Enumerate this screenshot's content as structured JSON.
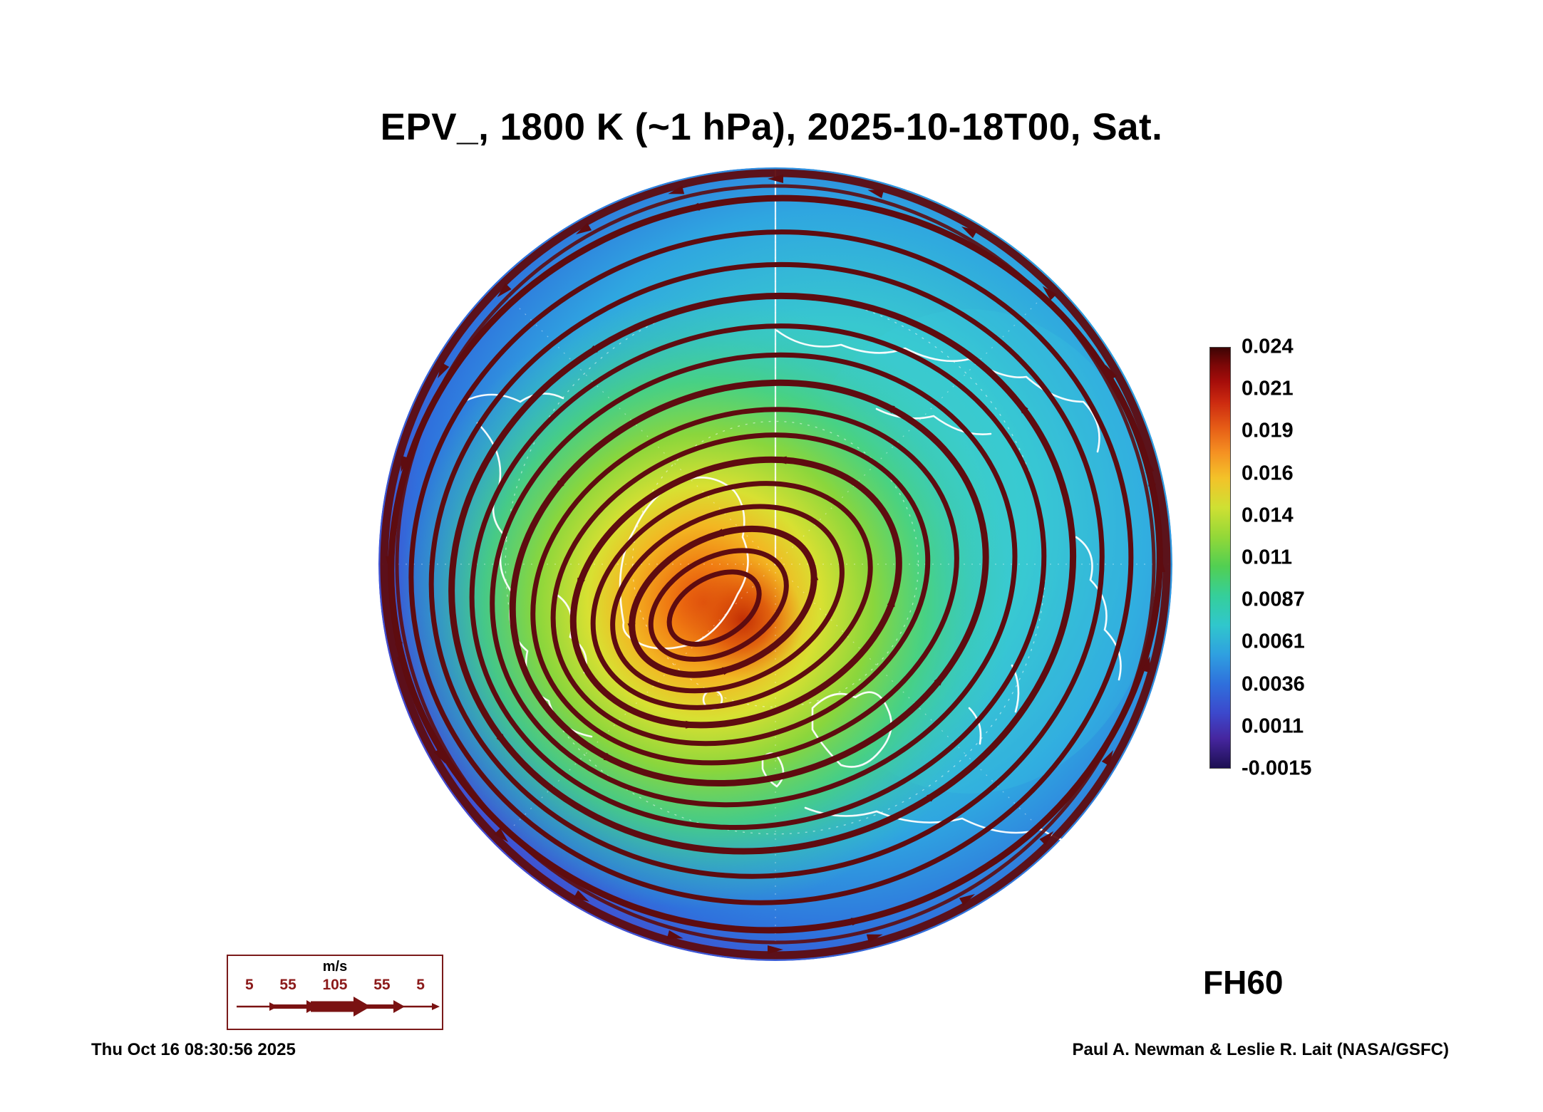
{
  "title": "EPV_, 1800 K (~1 hPa), 2025-10-18T00, Sat.",
  "footer": {
    "timestamp": "Thu Oct 16 08:30:56 2025",
    "credit": "Paul A. Newman & Leslie R. Lait (NASA/GSFC)",
    "forecast_hour": "FH60"
  },
  "wind_legend": {
    "units": "m/s",
    "ticks": [
      "5",
      "55",
      "105",
      "55",
      "5"
    ]
  },
  "colorbar": {
    "ticks": [
      "0.024",
      "0.021",
      "0.019",
      "0.016",
      "0.014",
      "0.011",
      "0.0087",
      "0.0061",
      "0.0036",
      "0.0011",
      "-0.0015"
    ]
  },
  "colors": {
    "streamline_red": "#5e0c10",
    "legend_red": "#8b1a1a",
    "coastline_white": "#ffffff"
  },
  "chart_data": {
    "type": "heatmap",
    "title": "EPV_, 1800 K (~1 hPa), 2025-10-18T00, Sat.",
    "variable": "EPV (Ertel potential vorticity)",
    "level": "1800 K (~1 hPa)",
    "valid_time": "2025-10-18T00, Sat.",
    "forecast_hour": "FH60",
    "projection": "north polar disc (pole-centered)",
    "colorbar": {
      "orientation": "vertical",
      "position": "right",
      "range": [
        -0.0015,
        0.024
      ],
      "ticks": [
        0.024,
        0.021,
        0.019,
        0.016,
        0.014,
        0.011,
        0.0087,
        0.0061,
        0.0036,
        0.0011,
        -0.0015
      ],
      "colors_top_to_bottom": [
        "dark red",
        "red",
        "orange",
        "yellow",
        "yellow-green",
        "green",
        "cyan",
        "light blue",
        "blue",
        "violet",
        "dark navy"
      ]
    },
    "wind_speed_scale_ms": [
      5,
      55,
      105,
      55,
      5
    ],
    "overlays": [
      "dark-red wind streamlines with arrowheads circling the polar vortex counterclockwise",
      "white coastlines",
      "faint white dashed latitude/longitude graticule with solid white meridian at top"
    ],
    "field_summary": "Polar vortex core displaced off the pole toward Greenland/North Atlantic with EPV maximum ~0.016-0.024 (orange/red); broad green ring ~0.009-0.014 around the core; cyan/blue ~0.003-0.009 over the eastern (right) half; purple/dark violet ~-0.0015-0.002 around the outer low-latitude rim."
  }
}
